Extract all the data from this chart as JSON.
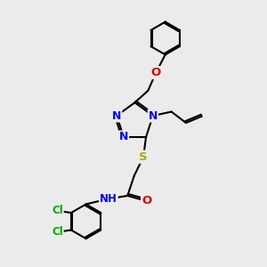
{
  "bg_color": "#ebebeb",
  "atom_colors": {
    "C": "#000000",
    "N": "#0000ee",
    "O": "#dd0000",
    "S": "#aaaa00",
    "Cl": "#00aa00",
    "H": "#000000"
  },
  "bond_color": "#000000",
  "bond_width": 1.5,
  "font_size_atom": 8.5,
  "xlim": [
    0,
    10
  ],
  "ylim": [
    0,
    10
  ]
}
